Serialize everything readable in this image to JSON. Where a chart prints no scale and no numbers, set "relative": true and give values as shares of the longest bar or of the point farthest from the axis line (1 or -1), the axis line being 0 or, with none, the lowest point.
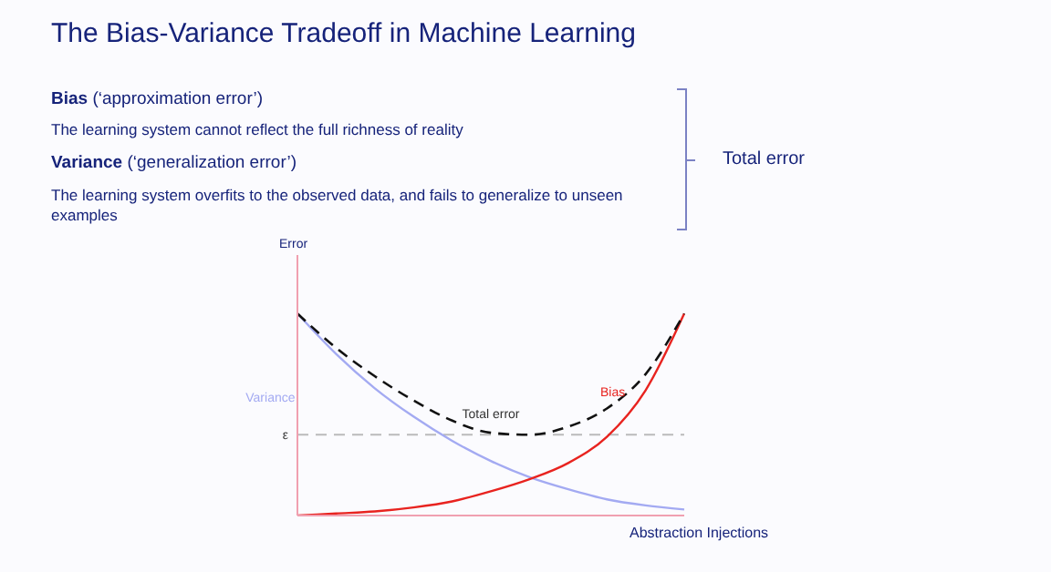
{
  "chart_data": {
    "type": "line",
    "title": "The Bias-Variance Tradeoff in Machine Learning",
    "xlabel": "Abstraction Injections",
    "ylabel": "Error",
    "relative": true,
    "marker": "none",
    "categories": [
      null,
      null,
      null,
      null,
      null,
      null,
      null,
      null,
      null,
      null,
      null
    ],
    "series": [
      {
        "name": "Variance",
        "color": "#a3aaf2",
        "values": [
          1,
          0.8,
          0.63,
          0.49,
          0.37,
          0.27,
          0.19,
          0.13,
          0.08,
          0.05,
          0.03
        ]
      },
      {
        "name": "Bias",
        "color": "#e8231f",
        "values": [
          0,
          0.01,
          0.02,
          0.04,
          0.07,
          0.12,
          0.18,
          0.26,
          0.39,
          0.62,
          1
        ]
      },
      {
        "name": "Total error",
        "color": "#111111",
        "line_style": "dashed",
        "values": [
          1,
          0.83,
          0.69,
          0.57,
          0.47,
          0.41,
          0.4,
          0.44,
          0.53,
          0.7,
          1
        ]
      }
    ],
    "ref_lines": [
      {
        "axis": "y",
        "value": 0.4,
        "label": "ε",
        "color": "#bbbbbb",
        "line_style": "dashed"
      }
    ],
    "annotations": [
      "Bias (‘approximation error’)",
      "The learning system cannot reflect the full richness of reality",
      "Variance (‘generalization error’)",
      "The learning system overfits to the observed data, and fails to generalize to unseen examples",
      "Total error"
    ]
  }
}
